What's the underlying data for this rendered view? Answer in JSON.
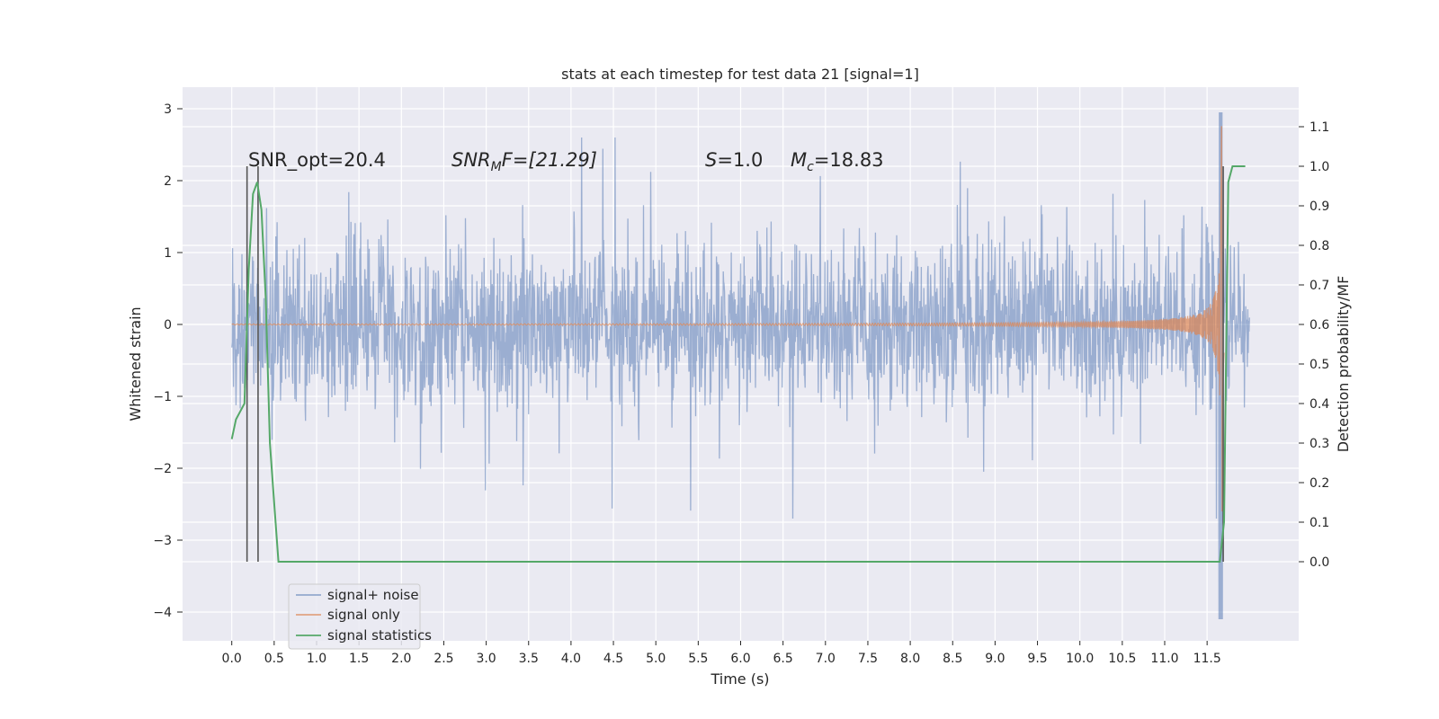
{
  "chart_data": {
    "type": "line",
    "title": "stats at each timestep for test data 21 [signal=1]",
    "xlabel": "Time (s)",
    "ylabel": "Whitened strain",
    "y2label": "Detection probability/MF",
    "xlim": [
      -0.58,
      12.58
    ],
    "ylim": [
      -4.4,
      3.3
    ],
    "y2lim": [
      -0.2,
      1.2
    ],
    "xticks": [
      0.0,
      0.5,
      1.0,
      1.5,
      2.0,
      2.5,
      3.0,
      3.5,
      4.0,
      4.5,
      5.0,
      5.5,
      6.0,
      6.5,
      7.0,
      7.5,
      8.0,
      8.5,
      9.0,
      9.5,
      10.0,
      10.5,
      11.0,
      11.5
    ],
    "xtick_labels": [
      "0.0",
      "0.5",
      "1.0",
      "1.5",
      "2.0",
      "2.5",
      "3.0",
      "3.5",
      "4.0",
      "4.5",
      "5.0",
      "5.5",
      "6.0",
      "6.5",
      "7.0",
      "7.5",
      "8.0",
      "8.5",
      "9.0",
      "9.5",
      "10.0",
      "10.5",
      "11.0",
      "11.5"
    ],
    "yticks": [
      3,
      2,
      1,
      0,
      -1,
      -2,
      -3,
      -4
    ],
    "ytick_labels": [
      "3",
      "2",
      "1",
      "0",
      "−1",
      "−2",
      "−3",
      "−4"
    ],
    "y2ticks": [
      1.1,
      1.0,
      0.9,
      0.8,
      0.7,
      0.6,
      0.5,
      0.4,
      0.3,
      0.2,
      0.1,
      0.0
    ],
    "y2tick_labels": [
      "1.1",
      "1.0",
      "0.9",
      "0.8",
      "0.7",
      "0.6",
      "0.5",
      "0.4",
      "0.3",
      "0.2",
      "0.1",
      "0.0"
    ],
    "grid": true,
    "legend_position": "lower-left",
    "series": [
      {
        "name": "signal+ noise",
        "color": "#4c72b0",
        "axis": "left",
        "description_values": {
          "t_range": [
            0.0,
            12.0
          ],
          "typical_amplitude": [
            -1.0,
            1.2
          ],
          "peak_max": 2.95,
          "peak_min": -4.1
        }
      },
      {
        "name": "signal only",
        "color": "#dd8452",
        "axis": "left",
        "description_values": {
          "t_range": [
            0.0,
            11.7
          ],
          "chirp_onset": 7.0,
          "peak_time": 11.67,
          "peak_max": 2.75,
          "peak_min": -2.6
        }
      },
      {
        "name": "signal statistics",
        "color": "#55a868",
        "axis": "right",
        "x": [
          0.0,
          0.05,
          0.1,
          0.15,
          0.2,
          0.25,
          0.3,
          0.35,
          0.4,
          0.45,
          0.5,
          0.55,
          0.6,
          11.6,
          11.65,
          11.7,
          11.75,
          11.8,
          11.85,
          11.9,
          11.95
        ],
        "y": [
          0.31,
          0.36,
          0.38,
          0.4,
          0.74,
          0.93,
          0.96,
          0.89,
          0.67,
          0.3,
          0.15,
          0.0,
          0.0,
          0.0,
          0.0,
          0.1,
          0.96,
          1.0,
          1.0,
          1.0,
          1.0
        ]
      }
    ],
    "vlines": [
      0.18,
      0.31,
      11.69
    ],
    "annotations": [
      {
        "text": "SNR_opt=20.4",
        "x": 0.2,
        "y": 2.2
      },
      {
        "base": "SNR",
        "sub": "M",
        "rest": "F=[21.29]",
        "x": 2.6,
        "y": 2.2
      },
      {
        "base": "S",
        "rest": "=1.0",
        "x": 5.6,
        "y": 2.2
      },
      {
        "base": "M",
        "sub": "c",
        "rest": "=18.83",
        "x": 6.6,
        "y": 2.2
      }
    ]
  }
}
